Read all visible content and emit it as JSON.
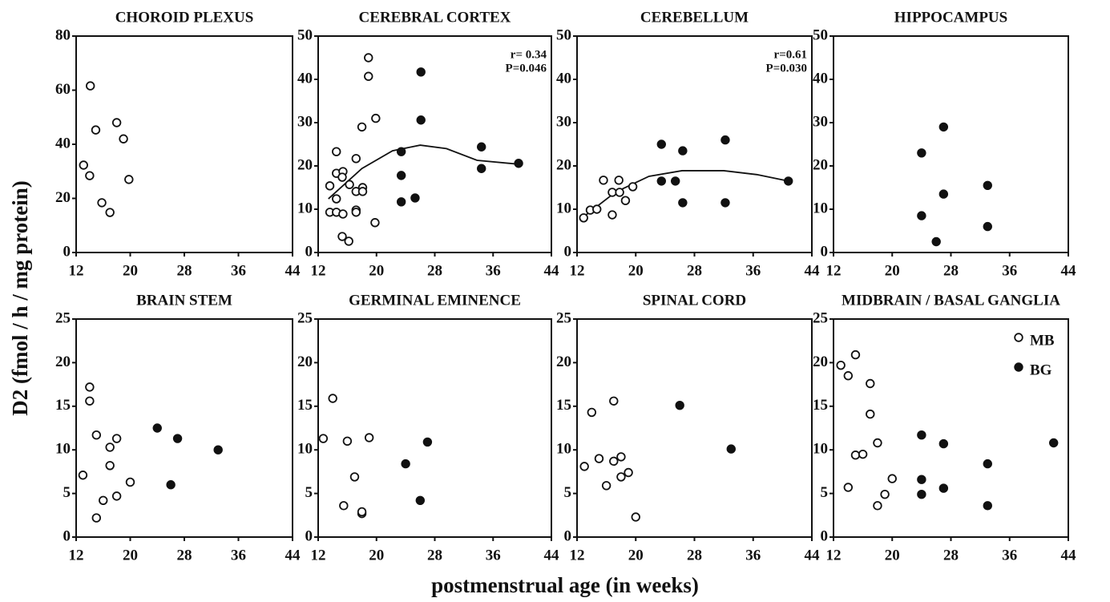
{
  "shared": {
    "ylabel": "D2 (fmol / h / mg protein)",
    "xlabel": "postmenstrual age  (in weeks)"
  },
  "chart_data": [
    {
      "type": "scatter",
      "title": "CHOROID PLEXUS",
      "xlim": [
        12,
        44
      ],
      "xticks": [
        12,
        20,
        28,
        36,
        44
      ],
      "ylim": [
        0,
        80
      ],
      "yticks": [
        0,
        20,
        40,
        60,
        80
      ],
      "series": [
        {
          "marker": "open",
          "color": "#111111",
          "x": [
            14.1,
            14.9,
            13.1,
            14,
            18,
            19,
            15.8,
            17,
            19.8
          ],
          "values": [
            61.6,
            45.3,
            32.3,
            28.4,
            48,
            42,
            18.4,
            14.8,
            27
          ]
        }
      ]
    },
    {
      "type": "scatter",
      "title": "CEREBRAL CORTEX",
      "xlim": [
        12,
        44
      ],
      "xticks": [
        12,
        20,
        28,
        36,
        44
      ],
      "ylim": [
        0,
        50
      ],
      "yticks": [
        0,
        10,
        20,
        30,
        40,
        50
      ],
      "series": [
        {
          "marker": "open",
          "color": "#111111",
          "x": [
            18.9,
            18.9,
            19.9,
            18,
            14.5,
            17.2,
            14.5,
            15.4,
            15.3,
            16.3,
            13.6,
            18.1,
            17.2,
            18.1,
            14.5,
            17.2,
            17.2,
            13.6,
            14.5,
            15.4,
            19.8,
            15.3,
            16.2
          ],
          "values": [
            45,
            40.7,
            31,
            29,
            23.3,
            21.7,
            18.3,
            18.7,
            17.4,
            15.7,
            15.4,
            15,
            14.1,
            14.1,
            12.4,
            9.8,
            9.3,
            9.3,
            9.3,
            8.9,
            6.9,
            3.7,
            2.6
          ]
        },
        {
          "marker": "filled",
          "color": "#111111",
          "x": [
            26.1,
            26.1,
            23.4,
            34.4,
            34.4,
            23.4,
            25.3,
            23.4,
            39.5
          ],
          "values": [
            41.7,
            30.6,
            23.3,
            24.4,
            19.4,
            17.8,
            12.6,
            11.7,
            20.6
          ]
        }
      ],
      "fit": {
        "x": [
          13.4,
          18,
          22.2,
          26,
          29.6,
          33.8,
          39.5
        ],
        "values": [
          12.4,
          19.4,
          23.5,
          24.8,
          24,
          21.3,
          20.4
        ]
      },
      "annotations": [
        "r= 0.34",
        "P=0.046"
      ]
    },
    {
      "type": "scatter",
      "title": "CEREBELLUM",
      "xlim": [
        12,
        44
      ],
      "xticks": [
        12,
        20,
        28,
        36,
        44
      ],
      "ylim": [
        0,
        50
      ],
      "yticks": [
        0,
        10,
        20,
        30,
        40,
        50
      ],
      "series": [
        {
          "marker": "open",
          "color": "#111111",
          "x": [
            12.9,
            13.8,
            14.7,
            15.6,
            16.8,
            17.7,
            17.8,
            16.8,
            18.6,
            19.6
          ],
          "values": [
            8,
            9.8,
            10,
            16.7,
            13.9,
            16.7,
            13.9,
            8.7,
            12,
            15.2
          ]
        },
        {
          "marker": "filled",
          "color": "#111111",
          "x": [
            23.5,
            26.4,
            32.2,
            23.5,
            25.4,
            26.4,
            32.2,
            40.8
          ],
          "values": [
            25,
            23.5,
            26,
            16.5,
            16.5,
            11.5,
            11.5,
            16.5
          ]
        }
      ],
      "fit": {
        "x": [
          12.7,
          17.2,
          21.8,
          26.3,
          32,
          36.5,
          40.8
        ],
        "values": [
          8,
          13.9,
          17.6,
          18.9,
          18.9,
          18,
          16.5
        ]
      },
      "annotations": [
        "r=0.61",
        "P=0.030"
      ]
    },
    {
      "type": "scatter",
      "title": "HIPPOCAMPUS",
      "xlim": [
        12,
        44
      ],
      "xticks": [
        12,
        20,
        28,
        36,
        44
      ],
      "ylim": [
        0,
        50
      ],
      "yticks": [
        0,
        10,
        20,
        30,
        40,
        50
      ],
      "series": [
        {
          "marker": "filled",
          "color": "#111111",
          "x": [
            24,
            27,
            27,
            24,
            26,
            33,
            33
          ],
          "values": [
            23,
            29,
            13.5,
            8.5,
            2.5,
            15.5,
            6
          ]
        }
      ]
    },
    {
      "type": "scatter",
      "title": "BRAIN STEM",
      "xlim": [
        12,
        44
      ],
      "xticks": [
        12,
        20,
        28,
        36,
        44
      ],
      "ylim": [
        0,
        25
      ],
      "yticks": [
        0,
        5,
        10,
        15,
        20,
        25
      ],
      "series": [
        {
          "marker": "open",
          "color": "#111111",
          "x": [
            13,
            14,
            14,
            15,
            15,
            16,
            17,
            17,
            18,
            18,
            20
          ],
          "values": [
            7.1,
            17.2,
            15.6,
            11.7,
            2.2,
            4.2,
            10.3,
            8.2,
            11.3,
            4.7,
            6.3
          ]
        },
        {
          "marker": "filled",
          "color": "#111111",
          "x": [
            24,
            27,
            26,
            33
          ],
          "values": [
            12.5,
            11.3,
            6,
            10
          ]
        }
      ]
    },
    {
      "type": "scatter",
      "title": "GERMINAL EMINENCE",
      "xlim": [
        12,
        44
      ],
      "xticks": [
        12,
        20,
        28,
        36,
        44
      ],
      "ylim": [
        0,
        25
      ],
      "yticks": [
        0,
        5,
        10,
        15,
        20,
        25
      ],
      "series": [
        {
          "marker": "open",
          "color": "#111111",
          "x": [
            12.7,
            14,
            15.5,
            16,
            17,
            18,
            18,
            19
          ],
          "values": [
            11.3,
            15.9,
            3.6,
            11,
            6.9,
            2.7,
            2.9,
            11.4
          ]
        },
        {
          "marker": "filled",
          "color": "#111111",
          "x": [
            24,
            26,
            27
          ],
          "values": [
            8.4,
            4.2,
            10.9
          ]
        }
      ]
    },
    {
      "type": "scatter",
      "title": "SPINAL CORD",
      "xlim": [
        12,
        44
      ],
      "xticks": [
        12,
        20,
        28,
        36,
        44
      ],
      "ylim": [
        0,
        25
      ],
      "yticks": [
        0,
        5,
        10,
        15,
        20,
        25
      ],
      "series": [
        {
          "marker": "open",
          "color": "#111111",
          "x": [
            13,
            14,
            15,
            16,
            17,
            17,
            18,
            18,
            19,
            20
          ],
          "values": [
            8.1,
            14.3,
            9,
            5.9,
            15.6,
            8.7,
            9.2,
            6.9,
            7.4,
            2.3
          ]
        },
        {
          "marker": "filled",
          "color": "#111111",
          "x": [
            26,
            33
          ],
          "values": [
            15.1,
            10.1
          ]
        }
      ]
    },
    {
      "type": "scatter",
      "title": "MIDBRAIN / BASAL GANGLIA",
      "xlim": [
        12,
        44
      ],
      "xticks": [
        12,
        20,
        28,
        36,
        44
      ],
      "ylim": [
        0,
        25
      ],
      "yticks": [
        0,
        5,
        10,
        15,
        20,
        25
      ],
      "legend": "top-right",
      "series": [
        {
          "name": "MB",
          "marker": "open",
          "color": "#111111",
          "x": [
            13,
            14,
            14,
            15,
            15,
            16,
            17,
            17,
            18,
            18,
            19,
            20
          ],
          "values": [
            19.7,
            18.5,
            5.7,
            20.9,
            9.4,
            9.5,
            17.6,
            14.1,
            10.8,
            3.6,
            4.9,
            6.7
          ]
        },
        {
          "name": "BG",
          "marker": "filled",
          "color": "#111111",
          "x": [
            24,
            24,
            24,
            27,
            27,
            33,
            33,
            42
          ],
          "values": [
            11.7,
            6.6,
            4.9,
            10.7,
            5.6,
            8.4,
            3.6,
            10.8
          ]
        }
      ]
    }
  ]
}
